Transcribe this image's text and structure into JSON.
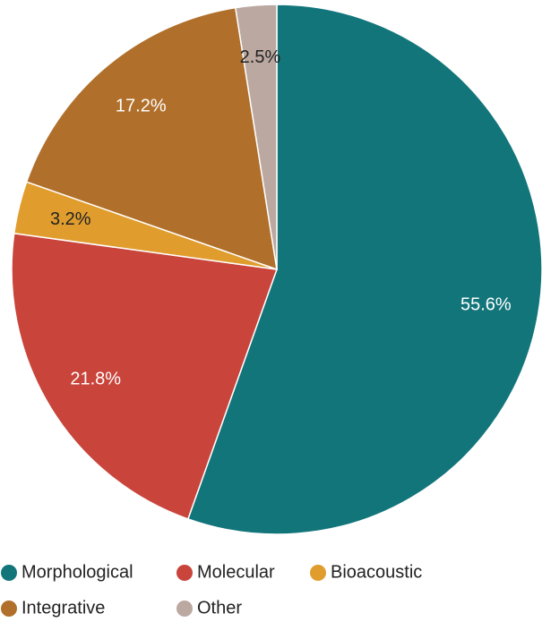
{
  "chart_data": {
    "type": "pie",
    "categories": [
      "Morphological",
      "Molecular",
      "Bioacoustic",
      "Integrative",
      "Other"
    ],
    "values": [
      55.6,
      21.8,
      3.2,
      17.2,
      2.5
    ],
    "value_labels": [
      "55.6%",
      "21.8%",
      "3.2%",
      "17.2%",
      "2.5%"
    ],
    "colors": [
      "#12757a",
      "#c9443a",
      "#e09d2e",
      "#b06f2a",
      "#bba8a0"
    ],
    "label_colors": [
      "#ffffff",
      "#ffffff",
      "#222222",
      "#ffffff",
      "#222222"
    ],
    "legend": "bottom"
  }
}
